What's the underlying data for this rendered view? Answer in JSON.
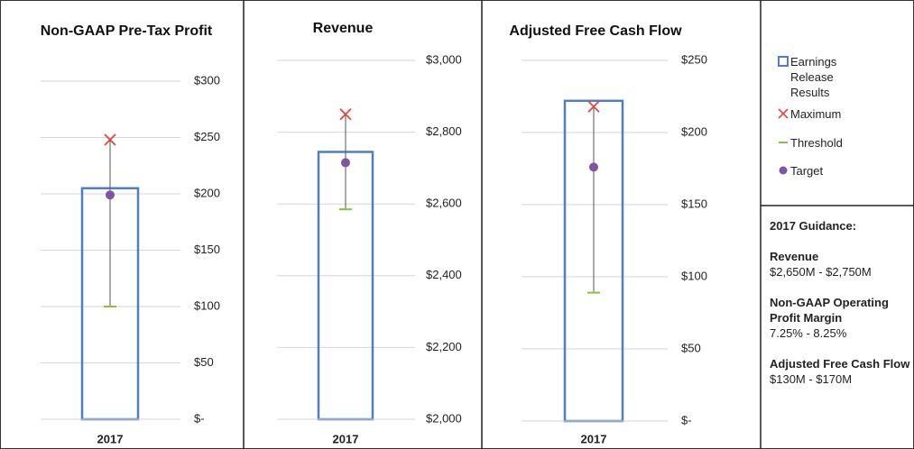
{
  "chart_data": [
    {
      "type": "bar-range",
      "title": "Non-GAAP Pre-Tax Profit",
      "categories": [
        "2017"
      ],
      "series": [
        {
          "values": [
            205
          ]
        },
        {
          "values": [
            248
          ]
        },
        {
          "values": [
            100
          ]
        },
        {
          "values": [
            199
          ]
        }
      ],
      "ylim": [
        0,
        300
      ],
      "yticks": [
        {
          "value": 0,
          "label": "$-"
        },
        {
          "value": 50,
          "label": "$50"
        },
        {
          "value": 100,
          "label": "$100"
        },
        {
          "value": 150,
          "label": "$150"
        },
        {
          "value": 200,
          "label": "$200"
        },
        {
          "value": 250,
          "label": "$250"
        },
        {
          "value": 300,
          "label": "$300"
        }
      ],
      "grid": true
    },
    {
      "type": "bar-range",
      "title": "Revenue",
      "categories": [
        "2017"
      ],
      "series": [
        {
          "values": [
            2745
          ]
        },
        {
          "values": [
            2850
          ]
        },
        {
          "values": [
            2585
          ]
        },
        {
          "values": [
            2715
          ]
        }
      ],
      "ylim": [
        2000,
        3000
      ],
      "yticks": [
        {
          "value": 2000,
          "label": "$2,000"
        },
        {
          "value": 2200,
          "label": "$2,200"
        },
        {
          "value": 2400,
          "label": "$2,400"
        },
        {
          "value": 2600,
          "label": "$2,600"
        },
        {
          "value": 2800,
          "label": "$2,800"
        },
        {
          "value": 3000,
          "label": "$3,000"
        }
      ],
      "grid": true
    },
    {
      "type": "bar-range",
      "title": "Adjusted Free Cash Flow",
      "categories": [
        "2017"
      ],
      "series": [
        {
          "values": [
            222
          ]
        },
        {
          "values": [
            218
          ]
        },
        {
          "values": [
            89
          ]
        },
        {
          "values": [
            176
          ]
        }
      ],
      "ylim": [
        0,
        250
      ],
      "yticks": [
        {
          "value": 0,
          "label": "$-"
        },
        {
          "value": 50,
          "label": "$50"
        },
        {
          "value": 100,
          "label": "$100"
        },
        {
          "value": 150,
          "label": "$150"
        },
        {
          "value": 200,
          "label": "$200"
        },
        {
          "value": 250,
          "label": "$250"
        }
      ],
      "grid": true
    }
  ],
  "legend": [
    {
      "name": "Earnings Release Results",
      "color": "#4f7fc3"
    },
    {
      "name": "Maximum",
      "color": "#e0483f"
    },
    {
      "name": "Threshold",
      "color": "#8cbf3f"
    },
    {
      "name": "Target",
      "color": "#7d55a3"
    }
  ],
  "guidance": {
    "title": "2017 Guidance:",
    "items": [
      {
        "label": "Revenue",
        "value": "$2,650M - $2,750M"
      },
      {
        "label": "Non-GAAP Operating Profit Margin",
        "value": "7.25% - 8.25%"
      },
      {
        "label": "Adjusted Free Cash Flow",
        "value": "$130M - $170M"
      }
    ]
  }
}
